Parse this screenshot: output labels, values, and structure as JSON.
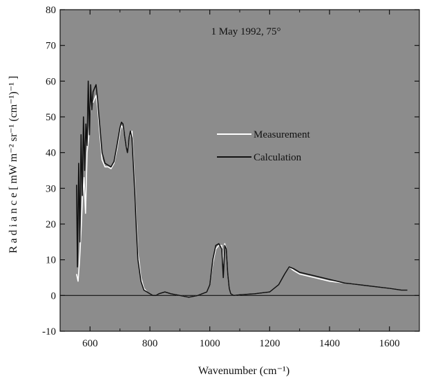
{
  "chart_data": {
    "type": "line",
    "title": "1 May 1992, 75°",
    "xlabel": "Wavenumber (cm⁻¹)",
    "ylabel": "R a d i a n c e   [ mW m⁻² sr⁻¹ (cm⁻¹)⁻¹ ]",
    "xlim": [
      500,
      1700
    ],
    "ylim": [
      -10,
      80
    ],
    "xticks": [
      600,
      800,
      1000,
      1200,
      1400,
      1600
    ],
    "yticks": [
      -10,
      0,
      10,
      20,
      30,
      40,
      50,
      60,
      70,
      80
    ],
    "grid": false,
    "legend_position": "center-right",
    "plot_background": "#8c8c8c",
    "series": [
      {
        "name": "Measurement",
        "color": "#ffffff",
        "x": [
          555,
          560,
          565,
          570,
          575,
          580,
          585,
          590,
          595,
          600,
          605,
          610,
          615,
          620,
          625,
          630,
          635,
          640,
          650,
          660,
          670,
          680,
          690,
          700,
          705,
          710,
          715,
          720,
          725,
          730,
          735,
          740,
          745,
          750,
          755,
          760,
          770,
          780,
          790,
          800,
          810,
          820,
          830,
          850,
          870,
          900,
          930,
          960,
          990,
          1000,
          1010,
          1020,
          1030,
          1040,
          1045,
          1050,
          1055,
          1060,
          1065,
          1070,
          1080,
          1100,
          1150,
          1200,
          1230,
          1250,
          1265,
          1280,
          1300,
          1350,
          1400,
          1450,
          1500,
          1550,
          1600,
          1640,
          1660
        ],
        "y": [
          6,
          4,
          10,
          18,
          28,
          33,
          23,
          40,
          44,
          51,
          55,
          54,
          55,
          56,
          53,
          48,
          43,
          38,
          36,
          36,
          35.5,
          37,
          41,
          46,
          47.5,
          47,
          45,
          42,
          41,
          44,
          45,
          46,
          38,
          30,
          20,
          12,
          5,
          2,
          1,
          0.5,
          0,
          0,
          0.5,
          1,
          0.5,
          0,
          -0.5,
          0,
          1,
          3,
          9,
          13,
          14,
          14,
          9,
          14.5,
          13,
          6,
          2,
          0.5,
          0,
          0.2,
          0.5,
          1,
          3,
          6,
          8,
          7,
          6,
          5,
          4,
          3.5,
          3,
          2.5,
          2,
          1.5,
          1.5
        ]
      },
      {
        "name": "Calculation",
        "color": "#111111",
        "x": [
          555,
          558,
          562,
          566,
          570,
          574,
          578,
          582,
          586,
          590,
          594,
          598,
          602,
          606,
          610,
          615,
          620,
          625,
          630,
          635,
          640,
          650,
          660,
          670,
          680,
          690,
          700,
          705,
          710,
          715,
          720,
          725,
          730,
          735,
          740,
          745,
          750,
          755,
          760,
          770,
          780,
          790,
          800,
          810,
          820,
          830,
          850,
          870,
          900,
          930,
          960,
          990,
          1000,
          1010,
          1020,
          1030,
          1040,
          1045,
          1050,
          1055,
          1060,
          1065,
          1070,
          1080,
          1100,
          1150,
          1200,
          1230,
          1250,
          1265,
          1280,
          1300,
          1350,
          1400,
          1450,
          1500,
          1550,
          1600,
          1640,
          1660
        ],
        "y": [
          31,
          8,
          37,
          15,
          45,
          28,
          50,
          35,
          48,
          42,
          60,
          45,
          59,
          52,
          57,
          58,
          59,
          55,
          50,
          45,
          40,
          37,
          36.5,
          36,
          37.5,
          42,
          47,
          48.5,
          48,
          45,
          42,
          40,
          44,
          46,
          44,
          36,
          28,
          18,
          10,
          4,
          1.5,
          1,
          0.5,
          0,
          0,
          0.5,
          1,
          0.5,
          0,
          -0.5,
          0,
          1,
          3,
          10,
          14,
          14.5,
          13,
          5,
          14,
          13,
          6,
          2,
          0.5,
          0,
          0.2,
          0.5,
          1,
          3,
          6,
          8,
          7.5,
          6.5,
          5.5,
          4.5,
          3.5,
          3,
          2.5,
          2,
          1.5,
          1.5
        ]
      }
    ]
  }
}
